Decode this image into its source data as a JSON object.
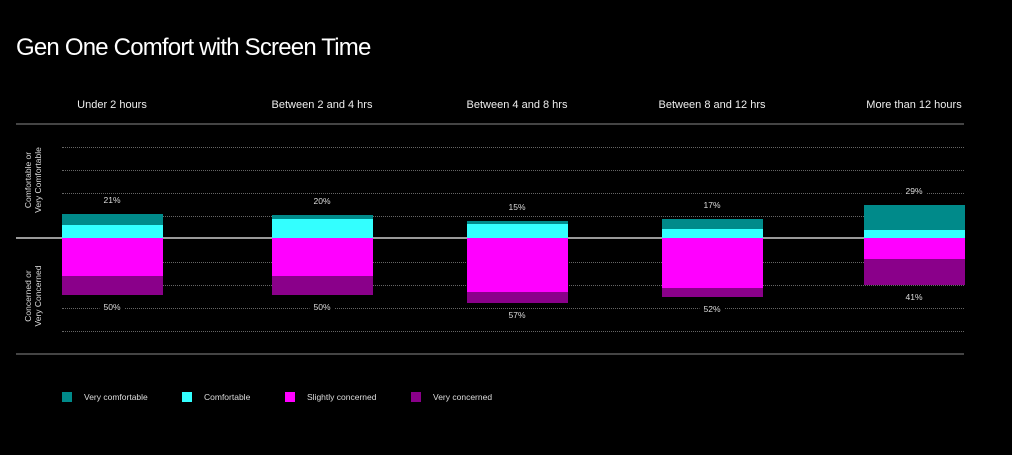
{
  "title": "Gen One Comfort with Screen Time",
  "y_labels": {
    "top": [
      "Comfortable or",
      "Very Comfortable"
    ],
    "bottom": [
      "Concerned or",
      "Very Concerned"
    ]
  },
  "legend": [
    {
      "label": "Very comfortable",
      "color": "#008a8a"
    },
    {
      "label": "Comfortable",
      "color": "#33ffff"
    },
    {
      "label": "Slightly concerned",
      "color": "#ff00ff"
    },
    {
      "label": "Very concerned",
      "color": "#8a008a"
    }
  ],
  "chart_data": {
    "type": "bar",
    "subtype": "diverging-stacked",
    "title": "Gen One Comfort with Screen Time",
    "categories": [
      "Under 2 hours",
      "Between 2 and 4 hrs",
      "Between 4 and 8 hrs",
      "Between 8 and 12 hrs",
      "More than 12 hours"
    ],
    "series": [
      {
        "name": "Very comfortable",
        "direction": "up",
        "values": [
          10,
          3,
          3,
          9,
          22
        ]
      },
      {
        "name": "Comfortable",
        "direction": "up",
        "values": [
          11,
          17,
          12,
          8,
          7
        ]
      },
      {
        "name": "Slightly concerned",
        "direction": "down",
        "values": [
          33,
          33,
          47,
          44,
          18
        ]
      },
      {
        "name": "Very concerned",
        "direction": "down",
        "values": [
          17,
          17,
          10,
          8,
          23
        ]
      }
    ],
    "totals_comfortable": [
      "21%",
      "20%",
      "15%",
      "17%",
      "29%"
    ],
    "totals_concerned": [
      "50%",
      "50%",
      "57%",
      "52%",
      "41%"
    ],
    "ylabel_top": "Comfortable or Very Comfortable",
    "ylabel_bottom": "Concerned or Very Concerned",
    "grid": true,
    "legend_position": "bottom"
  }
}
